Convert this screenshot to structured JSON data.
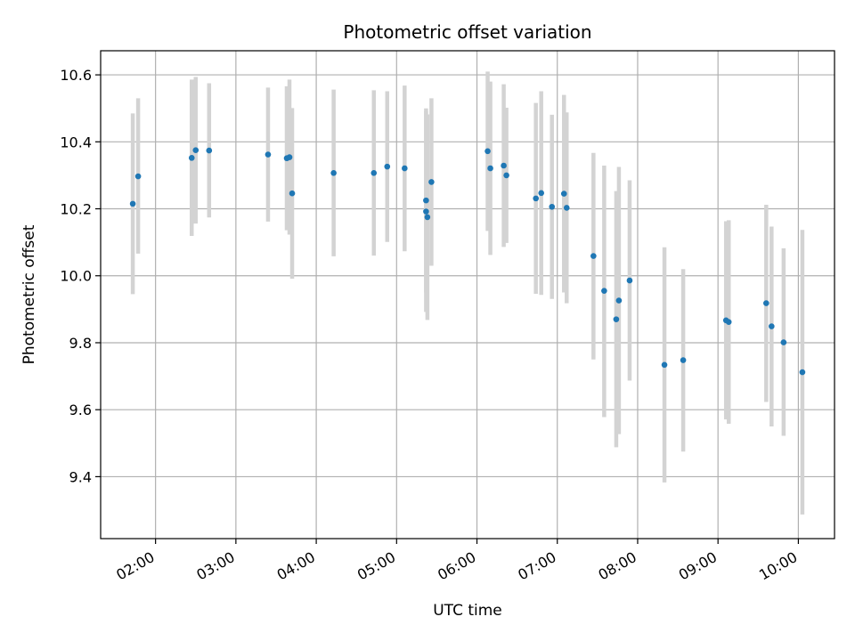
{
  "chart_data": {
    "type": "scatter",
    "title": "Photometric offset variation",
    "xlabel": "UTC time",
    "ylabel": "Photometric offset",
    "x_unit": "UTC time of day",
    "xlim": [
      "01:19",
      "10:27"
    ],
    "ylim": [
      9.215,
      10.672
    ],
    "x_ticks": [
      "02:00",
      "03:00",
      "04:00",
      "05:00",
      "06:00",
      "07:00",
      "08:00",
      "09:00",
      "10:00"
    ],
    "y_ticks": [
      9.4,
      9.6,
      9.8,
      10.0,
      10.2,
      10.4,
      10.6
    ],
    "grid": true,
    "legend": "none",
    "colors": {
      "point": "#1f77b4",
      "errorbar": "#d3d3d3",
      "grid": "#b0b0b0"
    },
    "series": [
      {
        "points": [
          {
            "x": "01:43",
            "y": 10.215,
            "lo": 9.945,
            "hi": 10.485
          },
          {
            "x": "01:47",
            "y": 10.297,
            "lo": 10.066,
            "hi": 10.53
          },
          {
            "x": "02:27",
            "y": 10.352,
            "lo": 10.119,
            "hi": 10.586
          },
          {
            "x": "02:30",
            "y": 10.375,
            "lo": 10.156,
            "hi": 10.594
          },
          {
            "x": "02:40",
            "y": 10.374,
            "lo": 10.174,
            "hi": 10.575
          },
          {
            "x": "03:24",
            "y": 10.362,
            "lo": 10.162,
            "hi": 10.562
          },
          {
            "x": "03:38",
            "y": 10.351,
            "lo": 10.136,
            "hi": 10.566
          },
          {
            "x": "03:40",
            "y": 10.354,
            "lo": 10.123,
            "hi": 10.586
          },
          {
            "x": "03:42",
            "y": 10.246,
            "lo": 9.991,
            "hi": 10.501
          },
          {
            "x": "04:13",
            "y": 10.307,
            "lo": 10.058,
            "hi": 10.556
          },
          {
            "x": "04:43",
            "y": 10.307,
            "lo": 10.06,
            "hi": 10.554
          },
          {
            "x": "04:53",
            "y": 10.326,
            "lo": 10.101,
            "hi": 10.551
          },
          {
            "x": "05:06",
            "y": 10.321,
            "lo": 10.073,
            "hi": 10.568
          },
          {
            "x": "05:22",
            "y": 10.192,
            "lo": 9.892,
            "hi": 10.492
          },
          {
            "x": "05:22",
            "y": 10.225,
            "lo": 9.95,
            "hi": 10.5
          },
          {
            "x": "05:23",
            "y": 10.175,
            "lo": 9.868,
            "hi": 10.482
          },
          {
            "x": "05:26",
            "y": 10.28,
            "lo": 10.03,
            "hi": 10.53
          },
          {
            "x": "06:08",
            "y": 10.372,
            "lo": 10.134,
            "hi": 10.61
          },
          {
            "x": "06:10",
            "y": 10.321,
            "lo": 10.062,
            "hi": 10.58
          },
          {
            "x": "06:20",
            "y": 10.329,
            "lo": 10.086,
            "hi": 10.572
          },
          {
            "x": "06:22",
            "y": 10.3,
            "lo": 10.098,
            "hi": 10.502
          },
          {
            "x": "06:44",
            "y": 10.231,
            "lo": 9.946,
            "hi": 10.516
          },
          {
            "x": "06:48",
            "y": 10.247,
            "lo": 9.943,
            "hi": 10.551
          },
          {
            "x": "06:56",
            "y": 10.206,
            "lo": 9.931,
            "hi": 10.481
          },
          {
            "x": "07:05",
            "y": 10.245,
            "lo": 9.95,
            "hi": 10.54
          },
          {
            "x": "07:07",
            "y": 10.203,
            "lo": 9.918,
            "hi": 10.488
          },
          {
            "x": "07:27",
            "y": 10.059,
            "lo": 9.75,
            "hi": 10.367
          },
          {
            "x": "07:35",
            "y": 9.955,
            "lo": 9.578,
            "hi": 10.329
          },
          {
            "x": "07:44",
            "y": 9.87,
            "lo": 9.488,
            "hi": 10.253
          },
          {
            "x": "07:46",
            "y": 9.926,
            "lo": 9.527,
            "hi": 10.325
          },
          {
            "x": "07:54",
            "y": 9.986,
            "lo": 9.687,
            "hi": 10.285
          },
          {
            "x": "08:20",
            "y": 9.734,
            "lo": 9.383,
            "hi": 10.085
          },
          {
            "x": "08:34",
            "y": 9.748,
            "lo": 9.475,
            "hi": 10.02
          },
          {
            "x": "09:06",
            "y": 9.867,
            "lo": 9.571,
            "hi": 10.163
          },
          {
            "x": "09:08",
            "y": 9.862,
            "lo": 9.558,
            "hi": 10.166
          },
          {
            "x": "09:36",
            "y": 9.918,
            "lo": 9.623,
            "hi": 10.212
          },
          {
            "x": "09:40",
            "y": 9.849,
            "lo": 9.55,
            "hi": 10.147
          },
          {
            "x": "09:49",
            "y": 9.801,
            "lo": 9.522,
            "hi": 10.082
          },
          {
            "x": "10:03",
            "y": 9.712,
            "lo": 9.287,
            "hi": 10.137
          }
        ]
      }
    ]
  }
}
